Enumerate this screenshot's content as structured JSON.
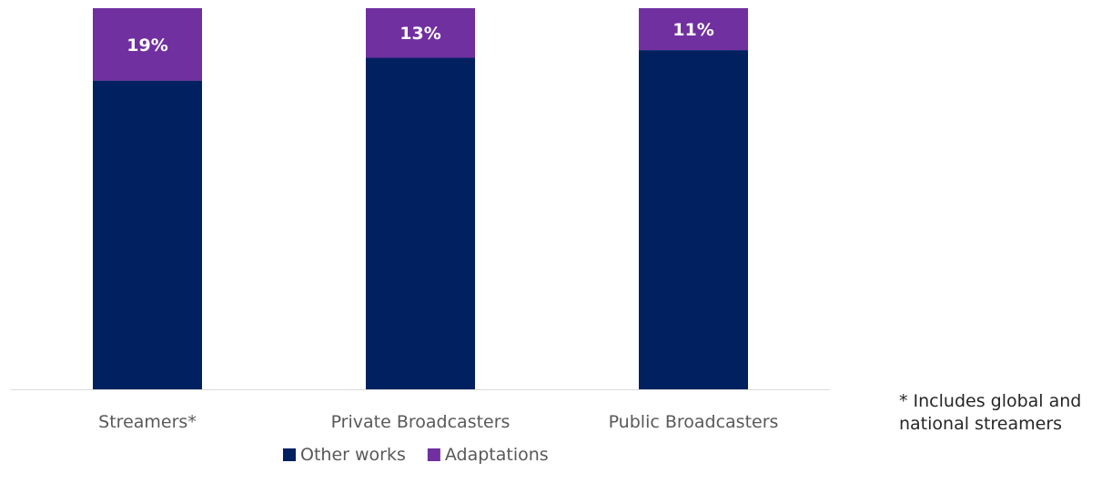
{
  "chart_data": {
    "type": "bar",
    "stacked": true,
    "normalized": true,
    "categories": [
      "Streamers*",
      "Private Broadcasters",
      "Public Broadcasters"
    ],
    "series": [
      {
        "name": "Other works",
        "values": [
          81,
          87,
          89
        ],
        "color": "#002060"
      },
      {
        "name": "Adaptations",
        "values": [
          19,
          13,
          11
        ],
        "color": "#7030A0"
      }
    ],
    "data_labels": [
      "19%",
      "13%",
      "11%"
    ],
    "ylim": [
      0,
      100
    ],
    "grid": false,
    "legend_position": "bottom",
    "colors": {
      "other_works": "#002060",
      "adaptations": "#7030A0",
      "axis": "#d9d9d9",
      "label_text": "#595959"
    }
  },
  "footnote": "* Includes global and national streamers"
}
